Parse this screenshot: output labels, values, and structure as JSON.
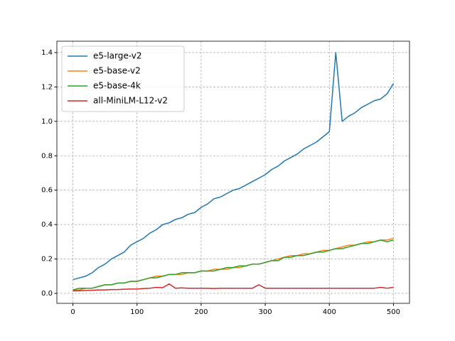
{
  "chart_data": {
    "type": "line",
    "x": [
      0,
      10,
      20,
      30,
      40,
      50,
      60,
      70,
      80,
      90,
      100,
      110,
      120,
      130,
      140,
      150,
      160,
      170,
      180,
      190,
      200,
      210,
      220,
      230,
      240,
      250,
      260,
      270,
      280,
      290,
      300,
      310,
      320,
      330,
      340,
      350,
      360,
      370,
      380,
      390,
      400,
      410,
      420,
      430,
      440,
      450,
      460,
      470,
      480,
      490,
      500
    ],
    "series": [
      {
        "name": "e5-large-v2",
        "color": "#1f77b4",
        "values": [
          0.08,
          0.09,
          0.1,
          0.12,
          0.15,
          0.17,
          0.2,
          0.22,
          0.24,
          0.28,
          0.3,
          0.32,
          0.35,
          0.37,
          0.4,
          0.41,
          0.43,
          0.44,
          0.46,
          0.47,
          0.5,
          0.52,
          0.55,
          0.56,
          0.58,
          0.6,
          0.61,
          0.63,
          0.65,
          0.67,
          0.69,
          0.72,
          0.74,
          0.77,
          0.79,
          0.81,
          0.84,
          0.86,
          0.88,
          0.91,
          0.94,
          1.4,
          1.0,
          1.03,
          1.05,
          1.08,
          1.1,
          1.12,
          1.13,
          1.16,
          1.22
        ]
      },
      {
        "name": "e5-base-v2",
        "color": "#ff7f0e",
        "values": [
          0.02,
          0.02,
          0.03,
          0.03,
          0.04,
          0.05,
          0.05,
          0.06,
          0.06,
          0.07,
          0.07,
          0.08,
          0.09,
          0.1,
          0.1,
          0.11,
          0.11,
          0.11,
          0.12,
          0.12,
          0.13,
          0.13,
          0.14,
          0.14,
          0.14,
          0.15,
          0.15,
          0.16,
          0.17,
          0.17,
          0.18,
          0.19,
          0.2,
          0.21,
          0.22,
          0.22,
          0.23,
          0.23,
          0.24,
          0.25,
          0.25,
          0.26,
          0.27,
          0.28,
          0.28,
          0.29,
          0.3,
          0.3,
          0.31,
          0.31,
          0.32
        ]
      },
      {
        "name": "e5-base-4k",
        "color": "#2ca02c",
        "values": [
          0.02,
          0.03,
          0.03,
          0.03,
          0.04,
          0.05,
          0.05,
          0.06,
          0.06,
          0.07,
          0.07,
          0.08,
          0.09,
          0.09,
          0.1,
          0.11,
          0.11,
          0.12,
          0.12,
          0.12,
          0.13,
          0.13,
          0.13,
          0.14,
          0.15,
          0.15,
          0.16,
          0.16,
          0.17,
          0.17,
          0.18,
          0.19,
          0.19,
          0.21,
          0.21,
          0.22,
          0.22,
          0.23,
          0.24,
          0.24,
          0.25,
          0.26,
          0.26,
          0.27,
          0.28,
          0.29,
          0.29,
          0.3,
          0.31,
          0.3,
          0.31
        ]
      },
      {
        "name": "all-MiniLM-L12-v2",
        "color": "#d62728",
        "values": [
          0.015,
          0.015,
          0.017,
          0.018,
          0.02,
          0.02,
          0.022,
          0.022,
          0.024,
          0.025,
          0.025,
          0.028,
          0.03,
          0.035,
          0.033,
          0.055,
          0.03,
          0.032,
          0.03,
          0.03,
          0.03,
          0.03,
          0.028,
          0.03,
          0.03,
          0.03,
          0.03,
          0.03,
          0.03,
          0.05,
          0.03,
          0.03,
          0.03,
          0.03,
          0.03,
          0.03,
          0.03,
          0.03,
          0.03,
          0.03,
          0.03,
          0.03,
          0.03,
          0.03,
          0.03,
          0.03,
          0.03,
          0.03,
          0.035,
          0.03,
          0.035
        ]
      }
    ],
    "xlim": [
      -25,
      525
    ],
    "ylim": [
      -0.058,
      1.466
    ],
    "xticks": [
      0,
      100,
      200,
      300,
      400,
      500
    ],
    "yticks": [
      {
        "value": 0,
        "label": "0.0"
      },
      0.2,
      0.4,
      0.6,
      0.8,
      {
        "value": 1,
        "label": "1.0"
      },
      1.2,
      1.4
    ],
    "grid": true,
    "legend": "upper left"
  }
}
